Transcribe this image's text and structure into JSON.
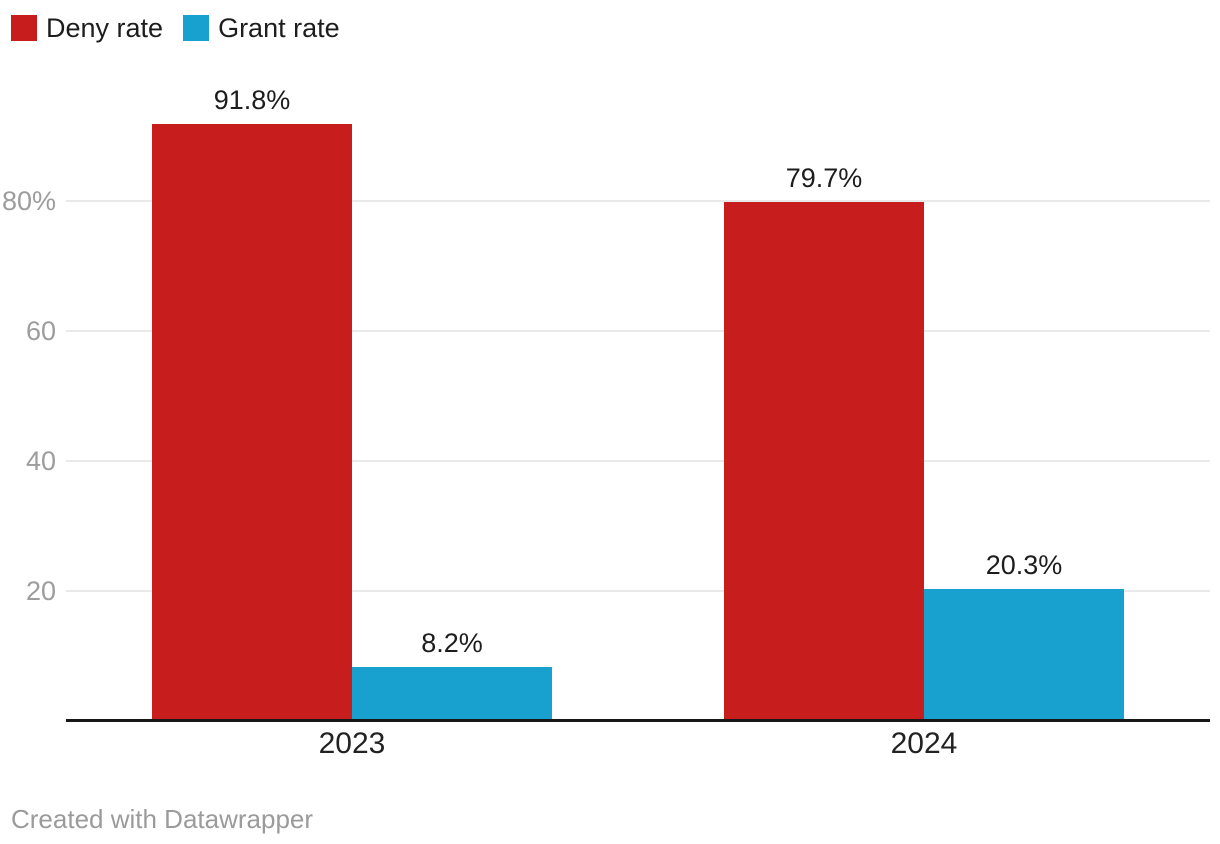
{
  "page": {
    "background": "#ffffff"
  },
  "footer": {
    "text": "Created with Datawrapper"
  },
  "colors": {
    "deny": "#c71e1d",
    "grant": "#18a0ce",
    "gridline": "#e9e9e9",
    "axis_line": "#171717",
    "tick_text": "#9d9d9d",
    "label_text": "#1d1d1d",
    "footer_text": "#9b9b9b"
  },
  "chart_data": {
    "type": "bar",
    "title": "",
    "categories": [
      "2023",
      "2024"
    ],
    "series": [
      {
        "name": "Deny rate",
        "color": "#c71e1d",
        "values": [
          91.8,
          79.7
        ],
        "value_labels": [
          "91.8%",
          "79.7%"
        ]
      },
      {
        "name": "Grant rate",
        "color": "#18a0ce",
        "values": [
          8.2,
          20.3
        ],
        "value_labels": [
          "8.2%",
          "20.3%"
        ]
      }
    ],
    "xlabel": "",
    "ylabel": "",
    "ylim": [
      0,
      100
    ],
    "yticks": [
      {
        "value": 20,
        "label": "20"
      },
      {
        "value": 40,
        "label": "40"
      },
      {
        "value": 60,
        "label": "60"
      },
      {
        "value": 80,
        "label": "80%"
      }
    ],
    "grid": true,
    "legend_position": "top-left",
    "value_labels_shown": true
  }
}
